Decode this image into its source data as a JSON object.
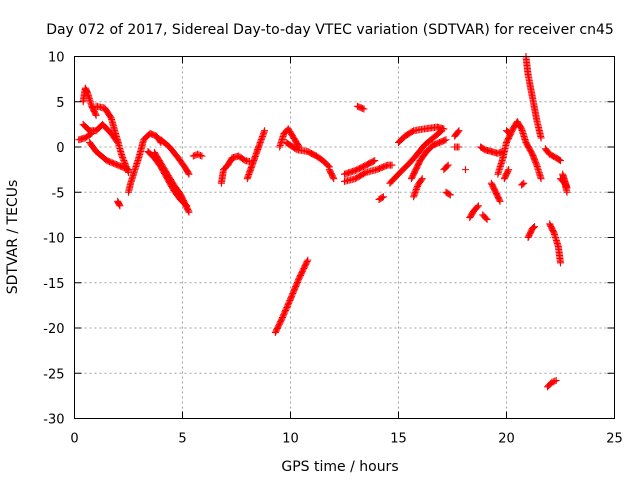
{
  "chart_data": {
    "type": "scatter",
    "title": "Day 072 of 2017, Sidereal Day-to-day VTEC variation (SDTVAR) for receiver cn45",
    "xlabel": "GPS time / hours",
    "ylabel": "SDTVAR / TECUs",
    "xlim": [
      0,
      25
    ],
    "ylim": [
      -30,
      10
    ],
    "xticks": [
      0,
      5,
      10,
      15,
      20,
      25
    ],
    "yticks": [
      -30,
      -25,
      -20,
      -15,
      -10,
      -5,
      0,
      5,
      10
    ],
    "xtick_labels": [
      "0",
      "5",
      "10",
      "15",
      "20",
      "25"
    ],
    "ytick_labels": [
      "-30",
      "-25",
      "-20",
      "-15",
      "-10",
      "-5",
      "0",
      "5",
      "10"
    ],
    "grid": true,
    "marker": "+",
    "color": "#ff0000",
    "segments": [
      [
        [
          0.2,
          0.8
        ],
        [
          0.5,
          1.0
        ],
        [
          0.8,
          1.5
        ]
      ],
      [
        [
          0.4,
          5.0
        ],
        [
          0.5,
          6.5
        ],
        [
          0.6,
          6.0
        ],
        [
          0.8,
          4.5
        ],
        [
          1.0,
          3.5
        ]
      ],
      [
        [
          0.4,
          2.5
        ],
        [
          0.7,
          1.8
        ],
        [
          1.0,
          1.8
        ],
        [
          1.3,
          2.5
        ],
        [
          1.7,
          1.5
        ],
        [
          2.0,
          0.5
        ]
      ],
      [
        [
          0.7,
          0.5
        ],
        [
          1.0,
          -0.5
        ],
        [
          1.5,
          -1.5
        ],
        [
          2.0,
          -2.0
        ],
        [
          2.5,
          -2.5
        ]
      ],
      [
        [
          1.0,
          4.5
        ],
        [
          1.4,
          4.3
        ],
        [
          1.7,
          3.2
        ],
        [
          1.9,
          1.5
        ],
        [
          2.2,
          -1.0
        ],
        [
          2.5,
          -2.8
        ]
      ],
      [
        [
          2.0,
          -6.0
        ],
        [
          2.1,
          -6.5
        ]
      ],
      [
        [
          2.5,
          -5.0
        ],
        [
          2.6,
          -4.0
        ],
        [
          2.8,
          -2.5
        ],
        [
          3.0,
          -1.0
        ],
        [
          3.2,
          0.8
        ],
        [
          3.5,
          1.5
        ],
        [
          3.8,
          1.2
        ],
        [
          4.0,
          0.5
        ]
      ],
      [
        [
          3.4,
          -0.5
        ],
        [
          3.7,
          -1.2
        ],
        [
          4.0,
          -2.2
        ],
        [
          4.3,
          -3.5
        ],
        [
          4.6,
          -4.8
        ],
        [
          4.9,
          -5.8
        ],
        [
          5.2,
          -6.5
        ]
      ],
      [
        [
          3.7,
          -0.6
        ],
        [
          4.0,
          -1.8
        ],
        [
          4.3,
          -3.0
        ],
        [
          4.6,
          -4.2
        ],
        [
          4.9,
          -5.2
        ],
        [
          5.1,
          -6.2
        ],
        [
          5.3,
          -7.2
        ]
      ],
      [
        [
          4.0,
          0.8
        ],
        [
          4.4,
          0.0
        ],
        [
          4.8,
          -1.2
        ],
        [
          5.1,
          -2.2
        ],
        [
          5.3,
          -3.0
        ]
      ],
      [
        [
          5.5,
          -1.0
        ],
        [
          5.7,
          -0.8
        ],
        [
          5.9,
          -1.0
        ]
      ],
      [
        [
          6.8,
          -4.0
        ],
        [
          6.9,
          -2.5
        ],
        [
          7.1,
          -2.0
        ],
        [
          7.3,
          -1.2
        ],
        [
          7.6,
          -1.0
        ],
        [
          7.9,
          -1.5
        ],
        [
          8.1,
          -1.6
        ]
      ],
      [
        [
          8.0,
          -3.5
        ],
        [
          8.3,
          -1.5
        ],
        [
          8.6,
          0.5
        ],
        [
          8.8,
          1.8
        ]
      ],
      [
        [
          9.3,
          -20.5
        ],
        [
          9.6,
          -19.0
        ],
        [
          10.0,
          -16.8
        ],
        [
          10.4,
          -14.5
        ],
        [
          10.8,
          -12.5
        ]
      ],
      [
        [
          9.5,
          0.0
        ],
        [
          9.7,
          1.5
        ],
        [
          9.9,
          2.0
        ],
        [
          10.2,
          0.8
        ],
        [
          10.4,
          0.0
        ]
      ],
      [
        [
          9.8,
          0.5
        ],
        [
          10.3,
          -0.3
        ],
        [
          10.8,
          -0.5
        ],
        [
          11.2,
          -1.0
        ],
        [
          11.5,
          -1.5
        ],
        [
          11.8,
          -2.2
        ]
      ],
      [
        [
          11.8,
          -2.5
        ],
        [
          12.0,
          -3.5
        ]
      ],
      [
        [
          12.5,
          -3.8
        ],
        [
          13.0,
          -3.5
        ],
        [
          13.5,
          -2.8
        ],
        [
          14.0,
          -2.5
        ],
        [
          14.5,
          -2.0
        ],
        [
          14.7,
          -2.0
        ]
      ],
      [
        [
          12.5,
          -3.0
        ],
        [
          13.0,
          -2.6
        ],
        [
          13.5,
          -2.0
        ],
        [
          13.9,
          -1.5
        ]
      ],
      [
        [
          13.1,
          4.5
        ],
        [
          13.4,
          4.2
        ]
      ],
      [
        [
          14.1,
          -5.8
        ],
        [
          14.3,
          -5.5
        ]
      ],
      [
        [
          14.6,
          -4.0
        ],
        [
          15.0,
          -3.0
        ],
        [
          15.5,
          -1.8
        ],
        [
          15.8,
          -1.0
        ],
        [
          16.2,
          0.2
        ],
        [
          16.6,
          1.0
        ],
        [
          17.0,
          1.8
        ]
      ],
      [
        [
          15.0,
          0.5
        ],
        [
          15.3,
          1.2
        ],
        [
          15.7,
          1.8
        ],
        [
          16.2,
          2.0
        ],
        [
          16.8,
          2.2
        ],
        [
          17.1,
          2.0
        ]
      ],
      [
        [
          15.6,
          -3.5
        ],
        [
          15.8,
          -2.5
        ],
        [
          16.0,
          -1.5
        ],
        [
          16.3,
          -0.5
        ],
        [
          16.6,
          0.2
        ],
        [
          16.9,
          0.5
        ],
        [
          17.2,
          0.8
        ]
      ],
      [
        [
          15.7,
          -5.5
        ],
        [
          15.9,
          -4.2
        ],
        [
          16.1,
          -3.5
        ]
      ],
      [
        [
          17.1,
          -2.5
        ],
        [
          17.3,
          -2.0
        ]
      ],
      [
        [
          17.6,
          0.0
        ],
        [
          17.8,
          0.0
        ]
      ],
      [
        [
          17.6,
          1.2
        ],
        [
          17.8,
          1.8
        ]
      ],
      [
        [
          17.2,
          -5.0
        ],
        [
          17.4,
          -5.3
        ]
      ],
      [
        [
          18.1,
          -2.5
        ]
      ],
      [
        [
          18.3,
          -7.8
        ],
        [
          18.5,
          -7.0
        ],
        [
          18.7,
          -6.5
        ]
      ],
      [
        [
          18.8,
          0.0
        ],
        [
          19.0,
          -0.3
        ],
        [
          19.3,
          -0.5
        ],
        [
          19.6,
          -0.7
        ],
        [
          19.8,
          -0.5
        ]
      ],
      [
        [
          18.9,
          -7.5
        ],
        [
          19.1,
          -8.0
        ]
      ],
      [
        [
          19.3,
          -4.0
        ],
        [
          19.5,
          -5.0
        ],
        [
          19.7,
          -6.0
        ]
      ],
      [
        [
          19.6,
          -3.0
        ],
        [
          19.8,
          -1.5
        ],
        [
          20.0,
          0.5
        ],
        [
          20.3,
          2.0
        ],
        [
          20.5,
          2.8
        ],
        [
          20.7,
          2.0
        ],
        [
          20.9,
          0.5
        ],
        [
          21.2,
          -0.8
        ],
        [
          21.4,
          -2.0
        ],
        [
          21.6,
          -3.5
        ]
      ],
      [
        [
          19.9,
          -3.5
        ],
        [
          20.1,
          -2.5
        ]
      ],
      [
        [
          20.0,
          1.8
        ],
        [
          20.1,
          1.6
        ]
      ],
      [
        [
          20.9,
          10.0
        ],
        [
          21.0,
          8.0
        ],
        [
          21.2,
          5.5
        ],
        [
          21.4,
          3.0
        ],
        [
          21.6,
          1.0
        ]
      ],
      [
        [
          20.7,
          -4.2
        ],
        [
          20.8,
          -4.0
        ]
      ],
      [
        [
          21.0,
          -10.0
        ],
        [
          21.2,
          -9.0
        ],
        [
          21.3,
          -8.8
        ]
      ],
      [
        [
          21.9,
          -26.5
        ],
        [
          22.1,
          -26.0
        ],
        [
          22.3,
          -25.8
        ]
      ],
      [
        [
          21.8,
          -0.2
        ],
        [
          22.0,
          -0.8
        ],
        [
          22.3,
          -1.2
        ],
        [
          22.5,
          -1.5
        ]
      ],
      [
        [
          22.0,
          -8.5
        ],
        [
          22.2,
          -9.5
        ],
        [
          22.4,
          -11.0
        ],
        [
          22.5,
          -12.8
        ]
      ],
      [
        [
          22.5,
          -3.5
        ],
        [
          22.7,
          -4.0
        ],
        [
          22.8,
          -4.5
        ],
        [
          22.6,
          -3.0
        ],
        [
          22.8,
          -5.0
        ]
      ]
    ]
  }
}
